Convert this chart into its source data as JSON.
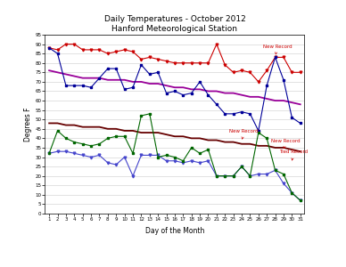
{
  "title": "Daily Temperatures - October 2012",
  "subtitle": "Hanford Meteorological Station",
  "xlabel": "Day of the Month",
  "ylabel": "Degrees F",
  "days": [
    1,
    2,
    3,
    4,
    5,
    6,
    7,
    8,
    9,
    10,
    11,
    12,
    13,
    14,
    15,
    16,
    17,
    18,
    19,
    20,
    21,
    22,
    23,
    24,
    25,
    26,
    27,
    28,
    29,
    30,
    31
  ],
  "record_max": [
    88,
    87,
    90,
    90,
    87,
    87,
    87,
    85,
    86,
    87,
    86,
    82,
    83,
    82,
    81,
    80,
    80,
    80,
    80,
    80,
    90,
    79,
    75,
    76,
    75,
    70,
    76,
    83,
    83,
    75,
    75
  ],
  "record_min": [
    32,
    33,
    33,
    32,
    31,
    30,
    31,
    27,
    26,
    30,
    20,
    31,
    31,
    31,
    28,
    28,
    27,
    28,
    27,
    28,
    20,
    20,
    20,
    25,
    20,
    21,
    21,
    23,
    16,
    11,
    7
  ],
  "normal_max": [
    76,
    75,
    74,
    73,
    72,
    72,
    72,
    71,
    71,
    71,
    70,
    70,
    69,
    69,
    68,
    67,
    67,
    66,
    66,
    65,
    65,
    64,
    64,
    63,
    62,
    62,
    61,
    60,
    60,
    59,
    58
  ],
  "normal_min": [
    48,
    48,
    47,
    47,
    46,
    46,
    46,
    45,
    45,
    44,
    44,
    43,
    43,
    43,
    42,
    41,
    41,
    40,
    40,
    39,
    39,
    38,
    38,
    37,
    37,
    36,
    36,
    35,
    35,
    34,
    33
  ],
  "observed_max": [
    88,
    85,
    68,
    68,
    68,
    67,
    72,
    77,
    77,
    66,
    67,
    79,
    74,
    75,
    64,
    65,
    63,
    64,
    70,
    63,
    58,
    53,
    53,
    54,
    53,
    44,
    68,
    83,
    71,
    51,
    48
  ],
  "observed_min": [
    32,
    44,
    40,
    38,
    37,
    36,
    37,
    40,
    41,
    41,
    32,
    52,
    53,
    30,
    31,
    30,
    28,
    35,
    32,
    34,
    20,
    20,
    20,
    25,
    20,
    43,
    40,
    23,
    21,
    11,
    7
  ],
  "record_max_color": "#cc0000",
  "record_min_color": "#4444cc",
  "normal_max_color": "#990099",
  "normal_min_color": "#660000",
  "observed_max_color": "#000099",
  "observed_min_color": "#006600",
  "annotation_color": "#cc0000",
  "ylim": [
    0,
    95
  ],
  "yticks": [
    0,
    5,
    10,
    15,
    20,
    25,
    30,
    35,
    40,
    45,
    50,
    55,
    60,
    65,
    70,
    75,
    80,
    85,
    90,
    95
  ]
}
